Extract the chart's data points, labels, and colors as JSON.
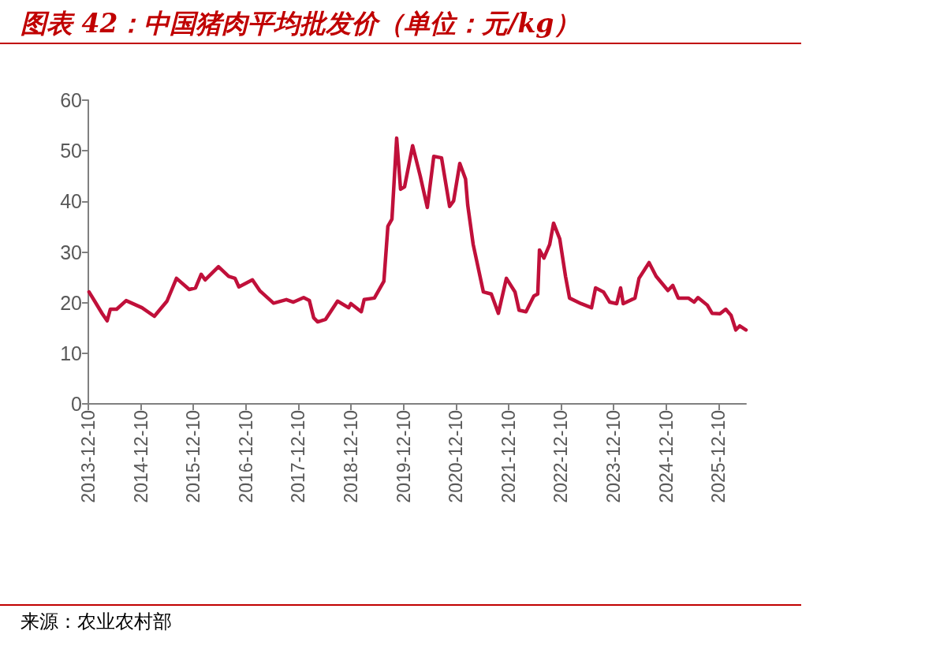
{
  "chart_data": {
    "type": "line",
    "title": "图表 42：中国猪肉平均批发价（单位：元/kg）",
    "annotations": [
      "来源：农业农村部"
    ],
    "x": [
      "2013-12-15",
      "2014-01-23",
      "2014-03-17",
      "2014-04-20",
      "2014-05-12",
      "2014-06-25",
      "2014-08-30",
      "2014-12-18",
      "2015-03-14",
      "2015-06-10",
      "2015-08-15",
      "2015-11-12",
      "2015-12-25",
      "2016-02-03",
      "2016-03-01",
      "2016-06-02",
      "2016-08-12",
      "2016-09-25",
      "2016-10-22",
      "2017-01-24",
      "2017-03-18",
      "2017-06-20",
      "2017-09-17",
      "2017-11-05",
      "2018-01-15",
      "2018-02-24",
      "2018-03-26",
      "2018-04-23",
      "2018-06-17",
      "2018-09-08",
      "2018-11-24",
      "2018-12-10",
      "2019-02-20",
      "2019-03-12",
      "2019-05-22",
      "2019-07-27",
      "2019-08-24",
      "2019-09-21",
      "2019-10-24",
      "2019-11-20",
      "2019-12-18",
      "2020-02-12",
      "2020-04-05",
      "2020-05-24",
      "2020-07-08",
      "2020-08-31",
      "2020-10-26",
      "2020-11-23",
      "2021-01-05",
      "2021-02-14",
      "2021-03-01",
      "2021-04-08",
      "2021-06-18",
      "2021-08-12",
      "2021-09-30",
      "2021-11-25",
      "2022-01-24",
      "2022-02-21",
      "2022-04-10",
      "2022-06-04",
      "2022-07-01",
      "2022-07-13",
      "2022-08-13",
      "2022-09-22",
      "2022-10-19",
      "2022-12-01",
      "2023-01-10",
      "2023-02-07",
      "2023-04-28",
      "2023-07-10",
      "2023-08-07",
      "2023-10-01",
      "2023-11-13",
      "2024-01-01",
      "2024-01-28",
      "2024-02-15",
      "2024-05-07",
      "2024-06-04",
      "2024-08-13",
      "2024-10-01",
      "2024-12-22",
      "2025-01-25",
      "2025-03-04",
      "2025-05-13",
      "2025-06-22",
      "2025-07-19",
      "2025-09-22",
      "2025-10-25",
      "2025-12-19",
      "2026-01-28",
      "2026-03-06",
      "2026-04-08",
      "2026-05-05",
      "2026-06-18"
    ],
    "series": [
      {
        "color": "#c0103a",
        "values": [
          22.1,
          20.3,
          17.8,
          16.4,
          18.7,
          18.7,
          20.4,
          19.0,
          17.3,
          20.3,
          24.8,
          22.6,
          22.9,
          25.6,
          24.5,
          27.1,
          25.2,
          24.8,
          23.1,
          24.5,
          22.3,
          19.9,
          20.6,
          20.1,
          21.0,
          20.4,
          17.0,
          16.2,
          16.7,
          20.3,
          19.0,
          19.8,
          18.2,
          20.6,
          20.9,
          24.2,
          35.1,
          36.5,
          52.5,
          42.4,
          42.9,
          51.0,
          45.0,
          38.8,
          48.9,
          48.6,
          39.0,
          40.1,
          47.5,
          44.4,
          39.3,
          31.5,
          22.1,
          21.7,
          17.9,
          24.8,
          22.1,
          18.5,
          18.2,
          21.3,
          21.7,
          30.4,
          28.8,
          31.5,
          35.7,
          32.6,
          25.2,
          20.9,
          19.8,
          19.0,
          22.9,
          22.1,
          20.1,
          19.8,
          22.9,
          19.8,
          20.9,
          24.8,
          27.9,
          25.2,
          22.4,
          23.4,
          20.9,
          20.9,
          20.1,
          21.0,
          19.5,
          17.9,
          17.8,
          18.7,
          17.5,
          14.6,
          15.4,
          14.6
        ]
      }
    ],
    "xlim": [
      "2013-12-10",
      "2026-06-18"
    ],
    "xticks": [
      "2013-12-10",
      "2014-12-10",
      "2015-12-10",
      "2016-12-10",
      "2017-12-10",
      "2018-12-10",
      "2019-12-10",
      "2020-12-10",
      "2021-12-10",
      "2022-12-10",
      "2023-12-10",
      "2024-12-10",
      "2025-12-10"
    ],
    "ylim": [
      0,
      60
    ],
    "yticks": [
      0,
      10,
      20,
      30,
      40,
      50,
      60
    ],
    "grid": false,
    "marker": "none",
    "line_style": "solid"
  }
}
